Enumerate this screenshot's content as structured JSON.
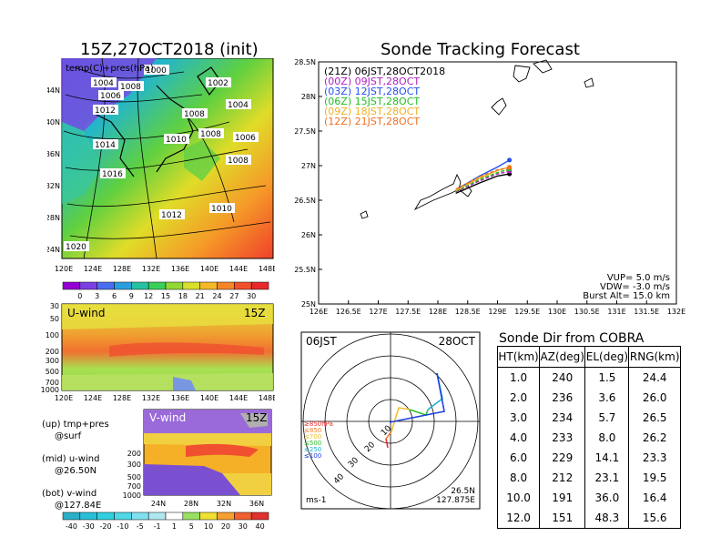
{
  "left_title": "15Z,27OCT2018 (init)",
  "map_panel": {
    "label": "temp(C)+pres(hPa)",
    "lat_labels": [
      "44N",
      "40N",
      "36N",
      "32N",
      "28N",
      "24N"
    ],
    "lon_labels": [
      "120E",
      "124E",
      "128E",
      "132E",
      "136E",
      "140E",
      "144E",
      "148E"
    ],
    "pressure_labels": [
      "1004",
      "1006",
      "1008",
      "1012",
      "1014",
      "1010",
      "1008",
      "1002",
      "1004",
      "1006",
      "1008",
      "1016",
      "1012",
      "1010",
      "1020",
      "1000",
      "1008"
    ],
    "colorbar_ticks": [
      "0",
      "3",
      "6",
      "9",
      "12",
      "15",
      "18",
      "21",
      "24",
      "27",
      "30"
    ],
    "colorbar_colors": [
      "#9400d3",
      "#7b3fe4",
      "#4a6cf0",
      "#2a9de0",
      "#25c2a0",
      "#3bcf5a",
      "#92d832",
      "#d8e02a",
      "#f5b828",
      "#f68428",
      "#f2502a",
      "#e8282a"
    ]
  },
  "u_panel": {
    "label": "U-wind",
    "time": "15Z",
    "y_ticks": [
      "30",
      "50",
      "100",
      "200",
      "300",
      "500",
      "700",
      "1000"
    ],
    "x_ticks": [
      "120E",
      "124E",
      "128E",
      "132E",
      "136E",
      "140E",
      "144E",
      "148E"
    ]
  },
  "v_panel": {
    "label": "V-wind",
    "time": "15Z",
    "y_ticks": [
      "200",
      "300",
      "500",
      "700",
      "1000"
    ],
    "x_ticks": [
      "24N",
      "28N",
      "32N",
      "36N"
    ]
  },
  "notes": [
    {
      "line1": "(up) tmp+pres",
      "line2": "@surf"
    },
    {
      "line1": "(mid) u-wind",
      "line2": "@26.50N"
    },
    {
      "line1": "(bot) v-wind",
      "line2": "@127.84E"
    }
  ],
  "wind_colorbar": {
    "ticks": [
      "-40",
      "-30",
      "-20",
      "-10",
      "-5",
      "-1",
      "1",
      "5",
      "10",
      "20",
      "30",
      "40"
    ],
    "colors": [
      "#2ab0c8",
      "#28c0d8",
      "#30d0e0",
      "#50d8e8",
      "#80e0f0",
      "#b0e8f0",
      "#ffffff",
      "#98e060",
      "#f0e030",
      "#f5a030",
      "#f06030",
      "#e03030"
    ]
  },
  "track_panel": {
    "title": "Sonde Tracking Forecast",
    "lat_labels": [
      "28.5N",
      "28N",
      "27.5N",
      "27N",
      "26.5N",
      "26N",
      "25.5N",
      "25N"
    ],
    "lon_labels": [
      "126E",
      "126.5E",
      "127E",
      "127.5E",
      "128E",
      "128.5E",
      "129E",
      "129.5E",
      "130E",
      "130.5E",
      "131E",
      "131.5E",
      "132E"
    ],
    "legend": [
      {
        "label": "(21Z) 06JST,28OCT2018",
        "color": "#000000"
      },
      {
        "label": "(00Z) 09JST,28OCT",
        "color": "#b020c0"
      },
      {
        "label": "(03Z) 12JST,28OCT",
        "color": "#2050f0"
      },
      {
        "label": "(06Z) 15JST,28OCT",
        "color": "#20c020"
      },
      {
        "label": "(09Z) 18JST,28OCT",
        "color": "#f0b020"
      },
      {
        "label": "(12Z) 21JST,28OCT",
        "color": "#f07020"
      }
    ],
    "params": [
      "VUP= 5.0 m/s",
      "VDW= -3.0 m/s",
      "Burst Alt= 15.0 km"
    ]
  },
  "hodo_panel": {
    "time_label": "06JST",
    "date_label": "28OCT",
    "ring_labels": [
      "10",
      "20",
      "30",
      "40"
    ],
    "level_legend": [
      {
        "label": "≥850hPa",
        "color": "#e83030"
      },
      {
        "label": "≤850",
        "color": "#f08030"
      },
      {
        "label": "≤700",
        "color": "#f0c030"
      },
      {
        "label": "≤500",
        "color": "#30c030"
      },
      {
        "label": "≤250",
        "color": "#20b0d0"
      },
      {
        "label": "≤100",
        "color": "#2040e0"
      }
    ],
    "units": "ms-1",
    "lat": "26.5N",
    "lon": "127.875E"
  },
  "dir_table": {
    "title": "Sonde Dir from COBRA",
    "headers": [
      "HT(km)",
      "AZ(deg)",
      "EL(deg)",
      "RNG(km)"
    ],
    "rows": [
      [
        "1.0",
        "240",
        "1.5",
        "24.4"
      ],
      [
        "2.0",
        "236",
        "3.6",
        "26.0"
      ],
      [
        "3.0",
        "234",
        "5.7",
        "26.5"
      ],
      [
        "4.0",
        "233",
        "8.0",
        "26.2"
      ],
      [
        "6.0",
        "229",
        "14.1",
        "23.3"
      ],
      [
        "8.0",
        "212",
        "23.1",
        "19.5"
      ],
      [
        "10.0",
        "191",
        "36.0",
        "16.4"
      ],
      [
        "12.0",
        "151",
        "48.3",
        "15.6"
      ]
    ]
  },
  "chart_data": [
    {
      "type": "line",
      "title": "Sonde Tracking Forecast",
      "xlim": [
        126,
        132
      ],
      "ylim": [
        25,
        28.5
      ],
      "series": [
        {
          "name": "(21Z) 06JST,28OCT2018",
          "x": [
            128.3,
            128.7,
            129.0,
            129.2
          ],
          "y": [
            26.6,
            26.75,
            26.85,
            26.88
          ]
        },
        {
          "name": "(00Z) 09JST,28OCT",
          "x": [
            128.3,
            128.7,
            129.0,
            129.2
          ],
          "y": [
            26.62,
            26.78,
            26.88,
            26.92
          ]
        },
        {
          "name": "(03Z) 12JST,28OCT",
          "x": [
            128.3,
            128.7,
            129.0,
            129.2
          ],
          "y": [
            26.65,
            26.85,
            26.98,
            27.08
          ]
        },
        {
          "name": "(06Z) 15JST,28OCT",
          "x": [
            128.3,
            128.7,
            129.0,
            129.2
          ],
          "y": [
            26.63,
            26.8,
            26.9,
            26.95
          ]
        },
        {
          "name": "(09Z) 18JST,28OCT",
          "x": [
            128.3,
            128.7,
            129.0,
            129.2
          ],
          "y": [
            26.64,
            26.82,
            26.93,
            26.98
          ]
        },
        {
          "name": "(12Z) 21JST,28OCT",
          "x": [
            128.3,
            128.7,
            129.0,
            129.2
          ],
          "y": [
            26.66,
            26.84,
            26.94,
            26.97
          ]
        }
      ]
    },
    {
      "type": "table",
      "title": "Sonde Dir from COBRA",
      "columns": [
        "HT(km)",
        "AZ(deg)",
        "EL(deg)",
        "RNG(km)"
      ],
      "rows": [
        [
          1.0,
          240,
          1.5,
          24.4
        ],
        [
          2.0,
          236,
          3.6,
          26.0
        ],
        [
          3.0,
          234,
          5.7,
          26.5
        ],
        [
          4.0,
          233,
          8.0,
          26.2
        ],
        [
          6.0,
          229,
          14.1,
          23.3
        ],
        [
          8.0,
          212,
          23.1,
          19.5
        ],
        [
          10.0,
          191,
          36.0,
          16.4
        ],
        [
          12.0,
          151,
          48.3,
          15.6
        ]
      ]
    }
  ]
}
